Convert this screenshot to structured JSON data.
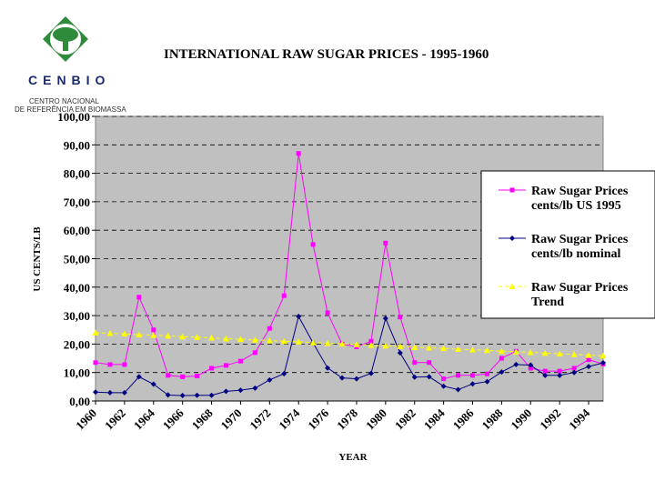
{
  "logo": {
    "text": "CENBIO",
    "sub1": "CENTRO NACIONAL",
    "sub2": "DE REFERÊNCIA EM BIOMASSA"
  },
  "chart_data": {
    "type": "line",
    "title": "INTERNATIONAL RAW SUGAR PRICES - 1995-1960",
    "xlabel": "YEAR",
    "ylabel": "US CENTS/LB",
    "ylim": [
      0,
      100
    ],
    "yticks": [
      "0,00",
      "10,00",
      "20,00",
      "30,00",
      "40,00",
      "50,00",
      "60,00",
      "70,00",
      "80,00",
      "90,00",
      "100,00"
    ],
    "xticks": [
      "1960",
      "1962",
      "1964",
      "1966",
      "1968",
      "1970",
      "1972",
      "1974",
      "1976",
      "1978",
      "1980",
      "1982",
      "1984",
      "1986",
      "1988",
      "1990",
      "1992",
      "1994"
    ],
    "x": [
      1960,
      1961,
      1962,
      1963,
      1964,
      1965,
      1966,
      1967,
      1968,
      1969,
      1970,
      1971,
      1972,
      1973,
      1974,
      1975,
      1976,
      1977,
      1978,
      1979,
      1980,
      1981,
      1982,
      1983,
      1984,
      1985,
      1986,
      1987,
      1988,
      1989,
      1990,
      1991,
      1992,
      1993,
      1994,
      1995
    ],
    "legend_position": "right",
    "grid": "horizontal dashed",
    "series": [
      {
        "name": "Raw Sugar Prices cents/lb US 1995",
        "color": "#ff00ff",
        "marker": "square",
        "values": [
          13.5,
          12.8,
          12.8,
          36.5,
          25,
          9,
          8.5,
          8.8,
          11.5,
          12.5,
          14,
          17,
          25.5,
          37,
          87,
          55,
          31,
          20,
          19,
          21,
          55.5,
          29.5,
          13.5,
          13.5,
          7.8,
          9,
          9,
          9.5,
          15,
          17.5,
          11.5,
          10.5,
          10.5,
          11.5,
          14.5,
          13
        ]
      },
      {
        "name": "Raw Sugar Prices cents/lb nominal",
        "color": "#000080",
        "marker": "diamond",
        "values": [
          3.1,
          2.9,
          2.9,
          8.5,
          5.9,
          2.1,
          1.9,
          2,
          2,
          3.4,
          3.8,
          4.5,
          7.4,
          9.6,
          29.7,
          20.4,
          11.6,
          8.1,
          7.8,
          9.7,
          29,
          16.9,
          8.4,
          8.5,
          5.2,
          4,
          6,
          6.8,
          10.2,
          12.8,
          12.6,
          9,
          9,
          10,
          12.1,
          13.4
        ]
      },
      {
        "name": "Raw Sugar Prices Trend",
        "color": "#ffff00",
        "marker": "triangle",
        "values": [
          24,
          23.8,
          23.6,
          23.3,
          23.1,
          22.9,
          22.6,
          22.4,
          22.2,
          21.9,
          21.7,
          21.5,
          21.2,
          21,
          20.8,
          20.5,
          20.3,
          20.1,
          19.9,
          19.6,
          19.4,
          19.2,
          18.9,
          18.7,
          18.5,
          18.2,
          18,
          17.8,
          17.5,
          17.3,
          17.1,
          16.8,
          16.6,
          16.4,
          16.1,
          15.9
        ]
      }
    ]
  }
}
